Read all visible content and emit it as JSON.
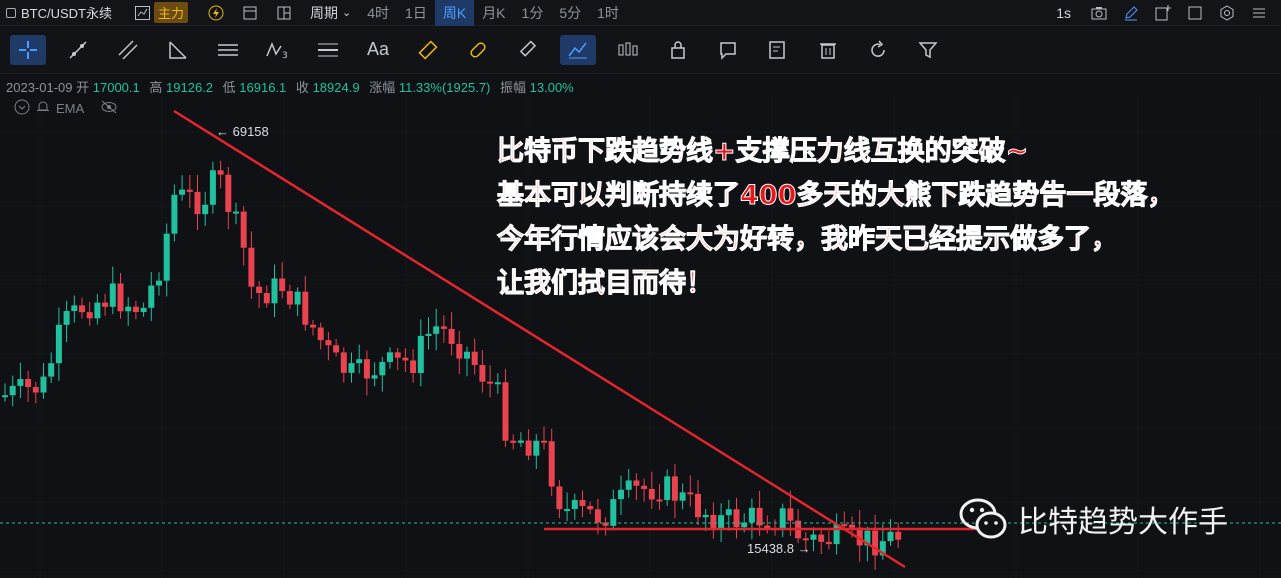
{
  "header": {
    "symbol": "BTC/USDT永续",
    "main_badge": "主力",
    "period_label": "周期",
    "timeframes": [
      "4时",
      "1日",
      "周K",
      "月K",
      "1分",
      "5分",
      "1时"
    ],
    "active_timeframe": "周K",
    "interval": "1s"
  },
  "toolbar": {
    "text_tool_label": "Aa"
  },
  "info": {
    "date": "2023-01-09",
    "open_label": "开",
    "open": "17000.1",
    "high_label": "高",
    "high": "19126.2",
    "low_label": "低",
    "low": "16916.1",
    "close_label": "收",
    "close": "18924.9",
    "change_label": "涨幅",
    "change": "11.33%(1925.7)",
    "amplitude_label": "振幅",
    "amplitude": "13.00%",
    "indicator": "EMA"
  },
  "chart": {
    "high_marker": "← 69158",
    "low_marker": "15438.8 →"
  },
  "annotation": {
    "line1": "比特币下跌趋势线+支撑压力线互换的突破~",
    "line2": "基本可以判断持续了400多天的大熊下跌趋势告一段落，",
    "line3": "今年行情应该会大为好转，我昨天已经提示做多了，",
    "line4": "让我们拭目而待！"
  },
  "watermark": {
    "text": "比特趋势大作手"
  },
  "colors": {
    "up": "#21c1a0",
    "down": "#e8434e",
    "trendline": "#e3262d",
    "accent": "#4e9bff"
  }
}
